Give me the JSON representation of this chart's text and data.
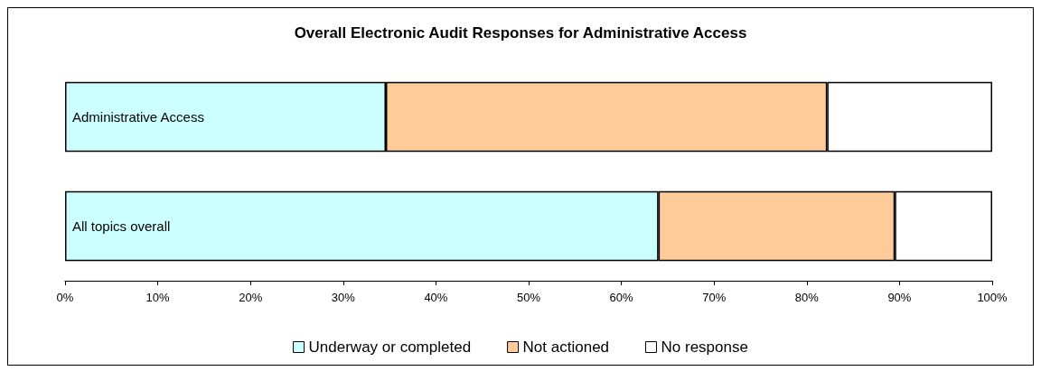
{
  "chart_data": {
    "type": "bar",
    "orientation": "horizontal",
    "stacked": true,
    "title": "Overall Electronic Audit Responses for Administrative Access",
    "categories": [
      "Administrative Access",
      "All topics overall"
    ],
    "series": [
      {
        "name": "Underway or completed",
        "color": "#ccffff",
        "values": [
          34.6,
          64.0
        ]
      },
      {
        "name": "Not actioned",
        "color": "#ffcc99",
        "values": [
          47.6,
          25.5
        ]
      },
      {
        "name": "No response",
        "color": "#ffffff",
        "values": [
          17.8,
          10.5
        ]
      }
    ],
    "xlim": [
      0,
      100
    ],
    "xticks": [
      {
        "value": 0,
        "label": "0%"
      },
      {
        "value": 10,
        "label": "10%"
      },
      {
        "value": 20,
        "label": "20%"
      },
      {
        "value": 30,
        "label": "30%"
      },
      {
        "value": 40,
        "label": "40%"
      },
      {
        "value": 50,
        "label": "50%"
      },
      {
        "value": 60,
        "label": "60%"
      },
      {
        "value": 70,
        "label": "70%"
      },
      {
        "value": 80,
        "label": "80%"
      },
      {
        "value": 90,
        "label": "90%"
      },
      {
        "value": 100,
        "label": "100%"
      }
    ],
    "grid": false,
    "legend": "bottom"
  }
}
